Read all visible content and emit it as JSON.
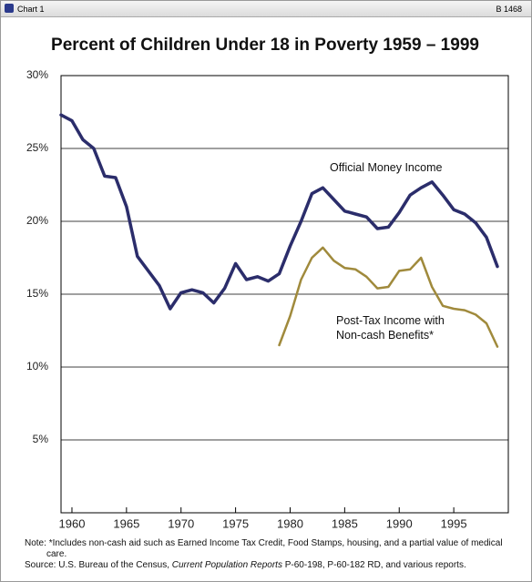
{
  "header": {
    "left": "Chart 1",
    "right": "B 1468"
  },
  "chart_data": {
    "type": "line",
    "title": "Percent of Children Under 18 in Poverty 1959 – 1999",
    "x": [
      1959,
      1960,
      1961,
      1962,
      1963,
      1964,
      1965,
      1966,
      1967,
      1968,
      1969,
      1970,
      1971,
      1972,
      1973,
      1974,
      1975,
      1976,
      1977,
      1978,
      1979,
      1980,
      1981,
      1982,
      1983,
      1984,
      1985,
      1986,
      1987,
      1988,
      1989,
      1990,
      1991,
      1992,
      1993,
      1994,
      1995,
      1996,
      1997,
      1998,
      1999
    ],
    "series": [
      {
        "name": "Official Money Income",
        "color": "#2b2d6b",
        "values": [
          27.3,
          26.9,
          25.6,
          25.0,
          23.1,
          23.0,
          21.0,
          17.6,
          16.6,
          15.6,
          14.0,
          15.1,
          15.3,
          15.1,
          14.4,
          15.4,
          17.1,
          16.0,
          16.2,
          15.9,
          16.4,
          18.3,
          20.0,
          21.9,
          22.3,
          21.5,
          20.7,
          20.5,
          20.3,
          19.5,
          19.6,
          20.6,
          21.8,
          22.3,
          22.7,
          21.8,
          20.8,
          20.5,
          19.9,
          18.9,
          16.9
        ]
      },
      {
        "name": "Post-Tax Income with Non-cash Benefits*",
        "color": "#a08a3c",
        "values": [
          null,
          null,
          null,
          null,
          null,
          null,
          null,
          null,
          null,
          null,
          null,
          null,
          null,
          null,
          null,
          null,
          null,
          null,
          null,
          null,
          11.5,
          13.5,
          16.0,
          17.5,
          18.2,
          17.3,
          16.8,
          16.7,
          16.2,
          15.4,
          15.5,
          16.6,
          16.7,
          17.5,
          15.5,
          14.2,
          14.0,
          13.9,
          13.6,
          13.0,
          11.4
        ]
      }
    ],
    "xlim": [
      1959,
      2000
    ],
    "xticks": [
      1960,
      1965,
      1970,
      1975,
      1980,
      1985,
      1990,
      1995
    ],
    "ylim": [
      0,
      30
    ],
    "yticks": [
      {
        "value": 5,
        "label": "5%"
      },
      {
        "value": 10,
        "label": "10%"
      },
      {
        "value": 15,
        "label": "15%"
      },
      {
        "value": 20,
        "label": "20%"
      },
      {
        "value": 25,
        "label": "25%"
      },
      {
        "value": 30,
        "label": "30%"
      }
    ],
    "grid": true
  },
  "notes": {
    "note_label": "Note:",
    "note_text": "*Includes non-cash aid such as Earned Income Tax Credit, Food Stamps, housing, and a partial value of medical care.",
    "source_label": "Source:",
    "source_parts": [
      "U.S. Bureau of the Census,",
      "Current Population Reports",
      "P-60-198, P-60-182 RD, and various reports."
    ]
  }
}
